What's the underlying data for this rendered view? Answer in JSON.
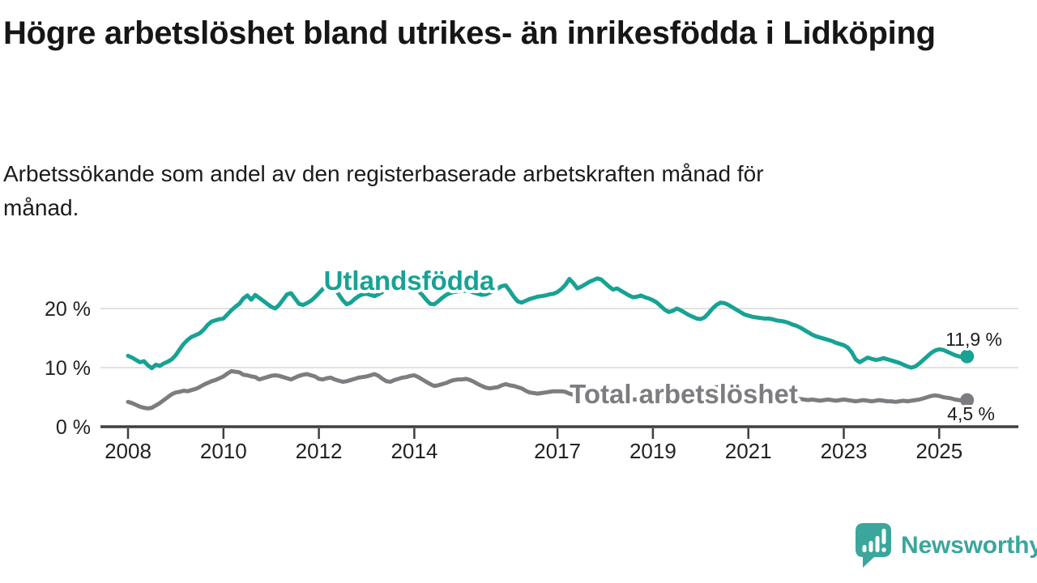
{
  "title": "Högre arbetslöshet bland utrikes- än inrikesfödda i Lidköping",
  "subtitle": "Arbetssökande som andel av den registerbaserade arbetskraften månad för månad.",
  "branding": {
    "text": "Newsworthy",
    "icon": "speech-bubble-bar-chart"
  },
  "colors": {
    "accent_teal": "#17A294",
    "series_gray": "#7D7D81",
    "logo_teal": "#3BA69C",
    "text_dark": "#1D1D1D",
    "axis": "#3F3F3F",
    "grid": "#D8D8D8"
  },
  "chart_data": {
    "type": "line",
    "x_start_year": 2008,
    "x_start": "2008-01",
    "x_end": "2025-08",
    "points_per_year": 12,
    "x_tick_years": [
      2008,
      2010,
      2012,
      2014,
      2017,
      2019,
      2021,
      2023,
      2025
    ],
    "x_tick_labels": [
      "2008",
      "2010",
      "2012",
      "2014",
      "2017",
      "2019",
      "2021",
      "2023",
      "2025"
    ],
    "y_tick_values": [
      0,
      10,
      20
    ],
    "y_tick_labels": [
      "0 %",
      "10 %",
      "20 %"
    ],
    "ylim": [
      0,
      27
    ],
    "grid": "horizontal",
    "legend_position": "inline-labels",
    "series": [
      {
        "name": "Utlandsfödda",
        "color": "#17A294",
        "end_label": "11,9 %",
        "end_value": 11.9,
        "values": [
          12.0,
          11.7,
          11.3,
          10.9,
          11.1,
          10.4,
          9.9,
          10.5,
          10.3,
          10.7,
          11.0,
          11.4,
          12.1,
          13.1,
          14.0,
          14.7,
          15.2,
          15.5,
          15.8,
          16.4,
          17.2,
          17.8,
          18.0,
          18.2,
          18.3,
          19.0,
          19.7,
          20.3,
          20.8,
          21.7,
          22.2,
          21.5,
          22.3,
          21.8,
          21.3,
          20.8,
          20.3,
          20.0,
          20.6,
          21.5,
          22.4,
          22.6,
          21.7,
          20.8,
          20.6,
          20.9,
          21.3,
          21.9,
          22.6,
          23.3,
          23.7,
          24.0,
          23.4,
          22.4,
          21.4,
          20.7,
          21.0,
          21.6,
          22.1,
          22.4,
          22.5,
          22.3,
          22.1,
          22.4,
          22.8,
          23.2,
          23.4,
          23.5,
          23.4,
          23.3,
          23.4,
          23.5,
          23.4,
          23.0,
          22.3,
          21.5,
          20.8,
          20.7,
          21.2,
          21.8,
          22.3,
          22.6,
          22.8,
          22.9,
          23.0,
          23.0,
          22.9,
          22.7,
          22.5,
          22.3,
          22.4,
          22.7,
          23.0,
          23.4,
          23.8,
          23.9,
          23.0,
          22.0,
          21.2,
          21.0,
          21.3,
          21.6,
          21.8,
          22.0,
          22.1,
          22.2,
          22.4,
          22.5,
          22.8,
          23.3,
          24.0,
          25.0,
          24.3,
          23.4,
          23.7,
          24.1,
          24.5,
          24.8,
          25.1,
          24.9,
          24.3,
          23.7,
          23.2,
          23.4,
          23.0,
          22.6,
          22.2,
          21.9,
          22.0,
          22.2,
          21.9,
          21.7,
          21.4,
          21.0,
          20.4,
          19.8,
          19.4,
          19.6,
          20.0,
          19.7,
          19.3,
          18.9,
          18.6,
          18.3,
          18.2,
          18.5,
          19.2,
          20.0,
          20.6,
          21.0,
          20.9,
          20.6,
          20.2,
          19.8,
          19.4,
          19.0,
          18.8,
          18.6,
          18.5,
          18.4,
          18.3,
          18.3,
          18.2,
          18.0,
          17.9,
          17.8,
          17.6,
          17.3,
          17.1,
          16.8,
          16.4,
          16.0,
          15.6,
          15.3,
          15.1,
          14.9,
          14.7,
          14.5,
          14.2,
          14.0,
          13.8,
          13.4,
          12.6,
          11.4,
          10.9,
          11.3,
          11.7,
          11.5,
          11.3,
          11.4,
          11.6,
          11.4,
          11.2,
          11.0,
          10.8,
          10.5,
          10.2,
          10.0,
          10.2,
          10.7,
          11.3,
          11.9,
          12.5,
          12.9,
          13.1,
          13.0,
          12.7,
          12.4,
          12.1,
          11.9,
          11.7,
          11.9
        ]
      },
      {
        "name": "Total arbetslöshet",
        "color": "#7D7D81",
        "end_label": "4,5 %",
        "end_value": 4.5,
        "values": [
          4.2,
          4.0,
          3.7,
          3.4,
          3.2,
          3.1,
          3.2,
          3.6,
          4.0,
          4.5,
          5.0,
          5.5,
          5.8,
          5.9,
          6.1,
          6.0,
          6.2,
          6.4,
          6.7,
          7.1,
          7.4,
          7.7,
          7.9,
          8.2,
          8.5,
          9.0,
          9.4,
          9.3,
          9.2,
          8.8,
          8.7,
          8.5,
          8.4,
          8.0,
          8.2,
          8.4,
          8.6,
          8.7,
          8.6,
          8.4,
          8.2,
          8.0,
          8.3,
          8.6,
          8.8,
          8.9,
          8.7,
          8.5,
          8.1,
          8.0,
          8.2,
          8.3,
          8.0,
          7.8,
          7.6,
          7.7,
          7.9,
          8.1,
          8.3,
          8.4,
          8.5,
          8.7,
          8.9,
          8.6,
          8.1,
          7.7,
          7.6,
          7.9,
          8.1,
          8.3,
          8.4,
          8.6,
          8.7,
          8.4,
          8.0,
          7.6,
          7.2,
          6.9,
          7.0,
          7.2,
          7.4,
          7.7,
          7.9,
          8.0,
          8.0,
          8.1,
          7.9,
          7.6,
          7.2,
          6.9,
          6.6,
          6.5,
          6.6,
          6.7,
          7.0,
          7.2,
          7.0,
          6.9,
          6.7,
          6.5,
          6.1,
          5.8,
          5.7,
          5.6,
          5.7,
          5.8,
          5.9,
          6.0,
          6.0,
          6.0,
          5.9,
          5.6,
          5.4,
          5.2,
          5.1,
          5.0,
          5.0,
          4.9,
          4.9,
          4.8,
          4.8,
          4.7,
          4.7,
          4.6,
          4.6,
          4.7,
          4.7,
          4.6,
          4.6,
          4.7,
          4.7,
          4.8,
          4.8,
          4.9,
          4.9,
          5.0,
          5.0,
          5.1,
          5.1,
          5.0,
          5.0,
          5.1,
          5.2,
          5.3,
          5.5,
          5.8,
          6.2,
          6.5,
          6.7,
          6.8,
          6.7,
          6.5,
          6.3,
          6.1,
          5.9,
          5.8,
          5.6,
          5.5,
          5.3,
          5.2,
          5.1,
          5.0,
          4.9,
          4.8,
          4.8,
          4.7,
          4.7,
          4.6,
          4.6,
          4.7,
          4.6,
          4.5,
          4.6,
          4.5,
          4.4,
          4.5,
          4.6,
          4.5,
          4.4,
          4.5,
          4.6,
          4.5,
          4.4,
          4.3,
          4.4,
          4.5,
          4.4,
          4.3,
          4.4,
          4.5,
          4.4,
          4.3,
          4.3,
          4.2,
          4.3,
          4.4,
          4.3,
          4.4,
          4.5,
          4.6,
          4.8,
          5.0,
          5.2,
          5.3,
          5.2,
          5.0,
          4.9,
          4.8,
          4.6,
          4.5,
          4.4,
          4.5
        ]
      }
    ]
  }
}
